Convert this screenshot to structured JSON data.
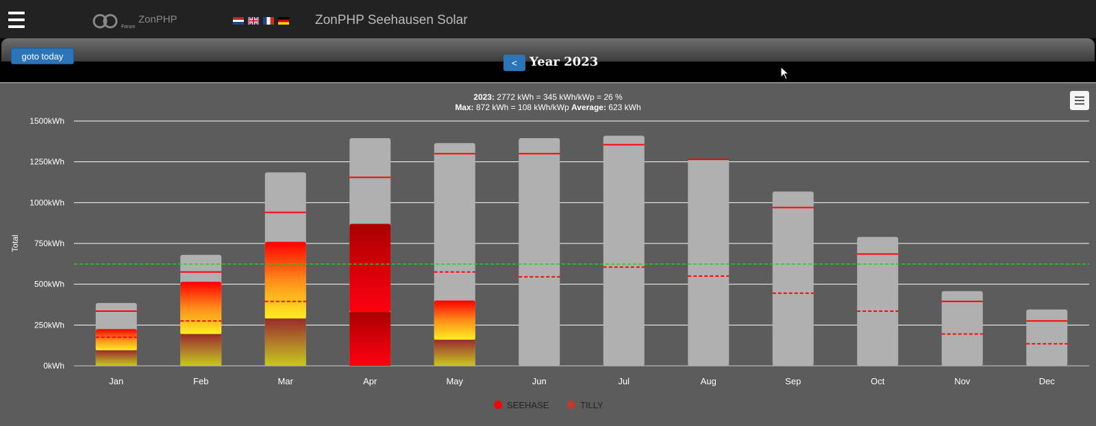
{
  "header": {
    "logo_text": "ZonPHP",
    "logo_sub": "Forum",
    "site_title": "ZonPHP Seehausen Solar",
    "languages": [
      "nl-flag-icon",
      "gb-flag-icon",
      "fr-flag-icon",
      "de-flag-icon"
    ]
  },
  "nav": {
    "goto_today": "goto today",
    "prev": "<",
    "year_title": "Year 2023"
  },
  "summary": {
    "line1_bold": "2023:",
    "line1_rest": " 2772 kWh = 345 kWh/kWp = 26 %",
    "line2_bold1": "Max:",
    "line2_mid": " 872 kWh = 108 kWh/kWp ",
    "line2_bold2": "Average:",
    "line2_rest": " 623 kWh"
  },
  "colors": {
    "seehase": "#ff0000",
    "tilly": "#c0392b",
    "reference": "#b0b0b0",
    "max_line": "#ff0000",
    "average_line": "#22cc22"
  },
  "chart_data": {
    "type": "bar",
    "ylabel": "Total",
    "ylim": [
      0,
      1500
    ],
    "yticks": [
      "0kWh",
      "250kWh",
      "500kWh",
      "750kWh",
      "1000kWh",
      "1250kWh",
      "1500kWh"
    ],
    "ytick_values": [
      0,
      250,
      500,
      750,
      1000,
      1250,
      1500
    ],
    "categories": [
      "Jan",
      "Feb",
      "Mar",
      "Apr",
      "May",
      "Jun",
      "Jul",
      "Aug",
      "Sep",
      "Oct",
      "Nov",
      "Dec"
    ],
    "series": [
      {
        "name": "SEEHASE",
        "values": [
          95,
          195,
          290,
          330,
          160,
          0,
          0,
          0,
          0,
          0,
          0,
          0
        ]
      },
      {
        "name": "TILLY",
        "values": [
          130,
          320,
          470,
          540,
          240,
          0,
          0,
          0,
          0,
          0,
          0,
          0
        ]
      }
    ],
    "reference_max": [
      385,
      680,
      1185,
      1395,
      1365,
      1395,
      1410,
      1265,
      1068,
      790,
      458,
      345
    ],
    "max_marker": [
      335,
      575,
      940,
      1155,
      1300,
      1300,
      1355,
      1265,
      970,
      685,
      395,
      275
    ],
    "min_marker": [
      175,
      275,
      395,
      null,
      575,
      545,
      605,
      550,
      445,
      335,
      195,
      135
    ],
    "average": 623,
    "legend": [
      "SEEHASE",
      "TILLY"
    ],
    "legend_placement": "bottom",
    "grid": true
  }
}
